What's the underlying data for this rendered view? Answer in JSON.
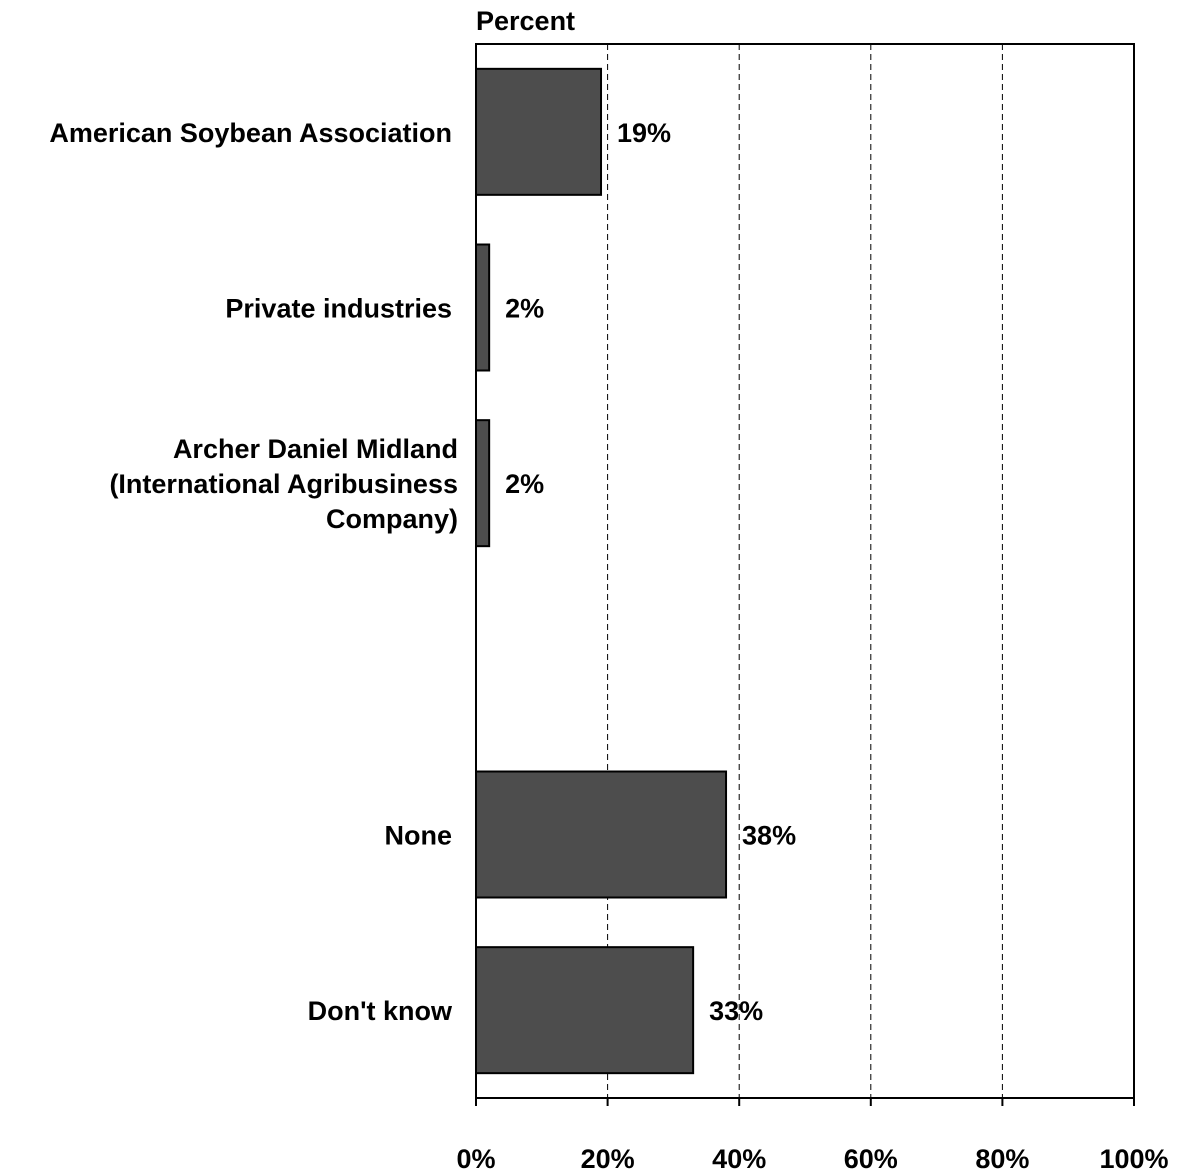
{
  "chart_data": {
    "type": "bar",
    "orientation": "horizontal",
    "title": "",
    "xlabel": "Percent",
    "ylabel": "",
    "xlim": [
      0,
      100
    ],
    "grid": true,
    "categories": [
      [
        "American Soybean Association"
      ],
      [
        "Private industries"
      ],
      [
        "Archer Daniel Midland",
        "(International Agribusiness",
        "Company)"
      ],
      [],
      [
        "None"
      ],
      [
        "Don't know"
      ]
    ],
    "values": [
      19,
      2,
      2,
      null,
      38,
      33
    ],
    "data_labels": [
      "19%",
      "2%",
      "2%",
      "",
      "38%",
      "33%"
    ],
    "ticks": [
      "0%",
      "20%",
      "40%",
      "60%",
      "80%",
      "100%"
    ],
    "colors": {
      "bar": "#4d4d4d",
      "bar_stroke": "#000000",
      "grid": "#000000"
    }
  }
}
